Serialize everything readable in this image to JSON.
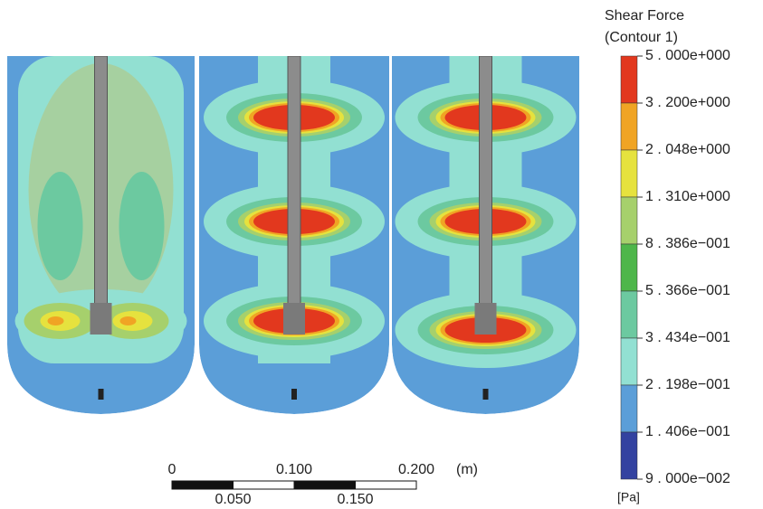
{
  "legend": {
    "title": [
      "Shear Force",
      "(Contour 1)"
    ],
    "levels": [
      "5 . 000e+000",
      "3 . 200e+000",
      "2 . 048e+000",
      "1 . 310e+000",
      "8 . 386e−001",
      "5 . 366e−001",
      "3 . 434e−001",
      "2 . 198e−001",
      "1 . 406e−001",
      "9 . 000e−002"
    ],
    "colors": [
      "#e2381e",
      "#f0a424",
      "#e6e23e",
      "#a6d06c",
      "#4eb64a",
      "#6cc9a0",
      "#92e0d2",
      "#5b9ed8",
      "#3342a0"
    ],
    "unit": "[Pa]"
  },
  "scale_bar": {
    "top_labels": [
      "0",
      "0.100",
      "0.200"
    ],
    "unit": "(m)",
    "bottom_labels": [
      "0.050",
      "0.150"
    ]
  }
}
